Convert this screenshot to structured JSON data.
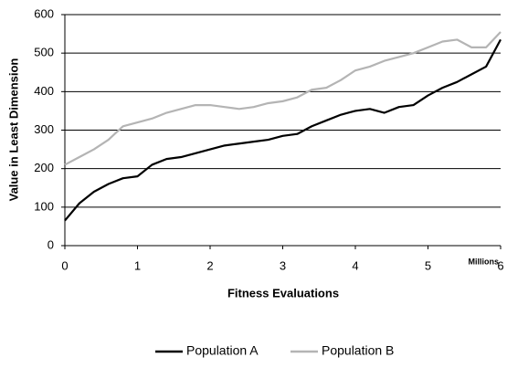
{
  "chart_data": {
    "type": "line",
    "x_label": "Fitness Evaluations",
    "y_label": "Value in Least Dimension",
    "x_unit": "Millions",
    "x": [
      0,
      0.2,
      0.4,
      0.6,
      0.8,
      1.0,
      1.2,
      1.4,
      1.6,
      1.8,
      2.0,
      2.2,
      2.4,
      2.6,
      2.8,
      3.0,
      3.2,
      3.4,
      3.6,
      3.8,
      4.0,
      4.2,
      4.4,
      4.6,
      4.8,
      5.0,
      5.2,
      5.4,
      5.6,
      5.8,
      6.0
    ],
    "series": [
      {
        "name": "Population A",
        "color": "#000000",
        "values": [
          65,
          110,
          140,
          160,
          175,
          180,
          210,
          225,
          230,
          240,
          250,
          260,
          265,
          270,
          275,
          285,
          290,
          310,
          325,
          340,
          350,
          355,
          345,
          360,
          365,
          390,
          410,
          425,
          445,
          465,
          535
        ]
      },
      {
        "name": "Population B",
        "color": "#b4b4b4",
        "values": [
          210,
          230,
          250,
          275,
          310,
          320,
          330,
          345,
          355,
          365,
          365,
          360,
          355,
          360,
          370,
          375,
          385,
          405,
          410,
          430,
          455,
          465,
          480,
          490,
          500,
          515,
          530,
          535,
          515,
          515,
          555
        ]
      }
    ],
    "xlim": [
      0,
      6
    ],
    "xticks": [
      0,
      1,
      2,
      3,
      4,
      5,
      6
    ],
    "ylim": [
      0,
      600
    ],
    "yticks": [
      0,
      100,
      200,
      300,
      400,
      500,
      600
    ],
    "grid": true,
    "legend": "bottom"
  }
}
